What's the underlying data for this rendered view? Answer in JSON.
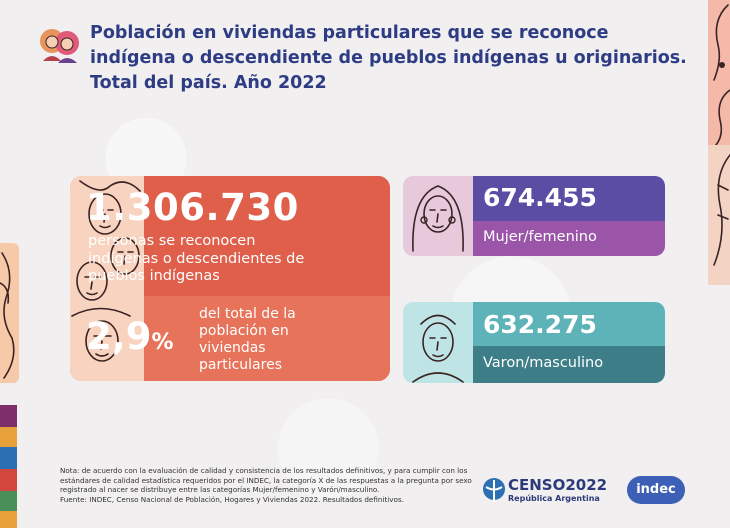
{
  "header": {
    "title": "Población en viviendas particulares que se reconoce indígena o descendiente de pueblos indígenas u originarios. Total del país. Año 2022"
  },
  "main_card": {
    "total_number": "1.306.730",
    "total_description": "personas se reconocen indígenas o descendientes de pueblos indígenas",
    "percent_value": "2,9",
    "percent_sign": "%",
    "percent_description": "del total de la población en viviendas particulares"
  },
  "female_card": {
    "number": "674.455",
    "label": "Mujer/femenino"
  },
  "male_card": {
    "number": "632.275",
    "label": "Varon/masculino"
  },
  "footer": {
    "note": "Nota: de acuerdo con la evaluación de calidad y consistencia de los resultados definitivos, y para cumplir con los estándares de calidad estadística requeridos por el INDEC, la categoría X de las respuestas a la pregunta por sexo registrado al nacer se distribuye entre las categorías Mujer/femenino y Varón/masculino.",
    "source": "Fuente: INDEC, Censo Nacional de Población, Hogares y Viviendas 2022. Resultados definitivos.",
    "censo_logo_text": "CENSO2022",
    "censo_logo_sub": "República Argentina",
    "indec_logo_text": "indec"
  },
  "colors": {
    "title": "#2e3c84",
    "main_card": "#df5f4b",
    "female_top": "#5b4da3",
    "female_bottom": "#9a55a8",
    "male_top": "#5db3b8",
    "male_bottom": "#3e7e88"
  }
}
